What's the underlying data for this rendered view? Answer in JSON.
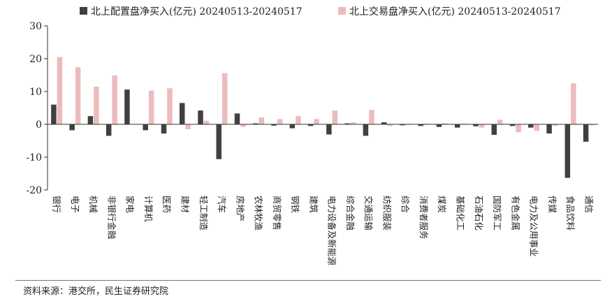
{
  "chart_data": {
    "type": "bar",
    "categories": [
      "银行",
      "电子",
      "机械",
      "非银行金融",
      "家电",
      "计算机",
      "医药",
      "建材",
      "轻工制造",
      "汽车",
      "房地产",
      "农林牧渔",
      "商贸零售",
      "钢铁",
      "建筑",
      "电力设备及新能源",
      "综合金融",
      "交通运输",
      "纺织服装",
      "综合",
      "消费者服务",
      "煤炭",
      "基础化工",
      "石油石化",
      "国防军工",
      "有色金属",
      "电力及公用事业",
      "传媒",
      "食品饮料",
      "通信"
    ],
    "series": [
      {
        "name": "北上配置盘净买入(亿元) 20240513-20240517",
        "color": "#404040",
        "values": [
          6.0,
          -1.8,
          2.5,
          -3.5,
          10.6,
          -1.8,
          -2.8,
          6.5,
          4.2,
          -10.6,
          3.3,
          0.3,
          -0.4,
          -1.2,
          -0.5,
          -3.1,
          0.3,
          -3.5,
          0.6,
          -0.3,
          -0.5,
          -0.8,
          -1.0,
          -0.6,
          -3.2,
          -0.5,
          -1.0,
          -2.8,
          -16.3,
          -5.3
        ]
      },
      {
        "name": "北上交易盘净买入(亿元) 20240513-20240517",
        "color": "#ecbcbc",
        "values": [
          20.5,
          17.4,
          11.5,
          14.9,
          0.0,
          10.3,
          11.0,
          -1.5,
          1.1,
          15.6,
          -0.8,
          2.1,
          1.6,
          2.5,
          1.6,
          4.2,
          0.6,
          4.4,
          -0.5,
          0.2,
          0.2,
          0.3,
          0.2,
          -1.0,
          1.4,
          -2.4,
          -2.0,
          -0.5,
          12.5,
          -0.3
        ]
      }
    ],
    "ylim": [
      -20,
      30
    ],
    "yticks": [
      -20,
      -10,
      0,
      10,
      20,
      30
    ],
    "grid": false,
    "legend": "top"
  },
  "footer": {
    "source": "资料来源：港交所，民生证券研究院"
  }
}
